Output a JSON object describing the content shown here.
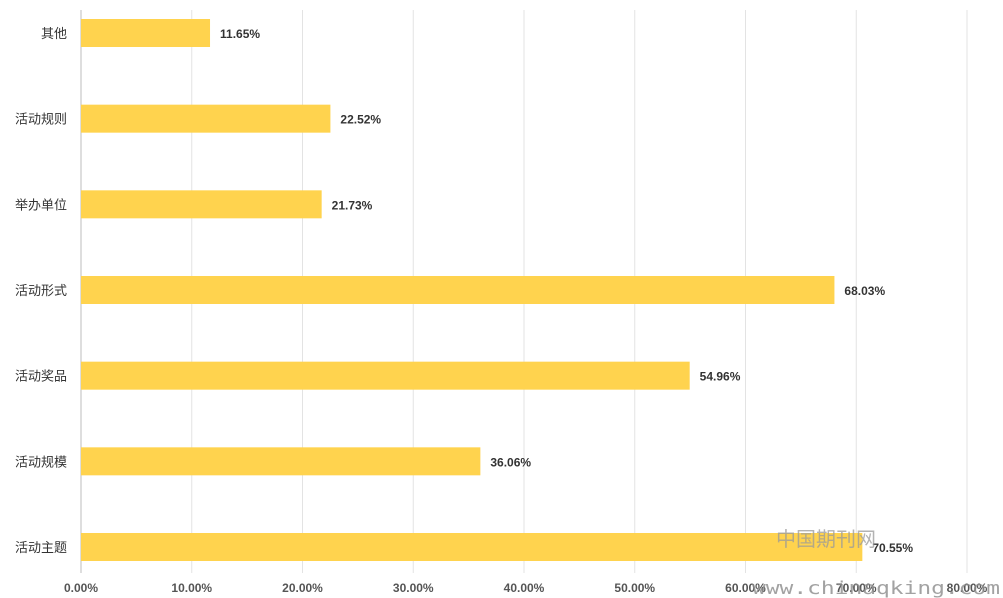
{
  "chart_data": {
    "type": "bar",
    "orientation": "horizontal",
    "categories": [
      "其他",
      "活动规则",
      "举办单位",
      "活动形式",
      "活动奖品",
      "活动规模",
      "活动主题"
    ],
    "values": [
      11.65,
      22.52,
      21.73,
      68.03,
      54.96,
      36.06,
      70.55
    ],
    "data_labels": [
      "11.65%",
      "22.52%",
      "21.73%",
      "68.03%",
      "54.96%",
      "36.06%",
      "70.55%"
    ],
    "x_ticks": [
      "0.00%",
      "10.00%",
      "20.00%",
      "30.00%",
      "40.00%",
      "50.00%",
      "60.00%",
      "70.00%",
      "80.00%"
    ],
    "xlim": [
      0,
      80
    ],
    "grid": true,
    "legend": "none",
    "bar_color": "#FFD34E"
  },
  "watermark": {
    "text": "中国期刊网",
    "url": "www.chinaqking.com"
  }
}
